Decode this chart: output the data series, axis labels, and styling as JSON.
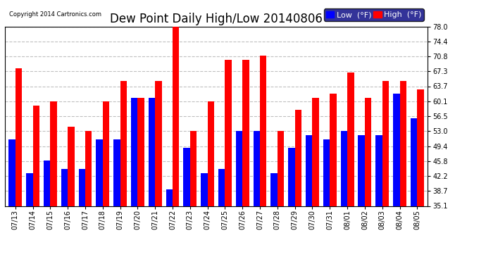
{
  "title": "Dew Point Daily High/Low 20140806",
  "copyright": "Copyright 2014 Cartronics.com",
  "dates": [
    "07/13",
    "07/14",
    "07/15",
    "07/16",
    "07/17",
    "07/18",
    "07/19",
    "07/20",
    "07/21",
    "07/22",
    "07/23",
    "07/24",
    "07/25",
    "07/26",
    "07/27",
    "07/28",
    "07/29",
    "07/30",
    "07/31",
    "08/01",
    "08/02",
    "08/03",
    "08/04",
    "08/05"
  ],
  "low": [
    51,
    43,
    46,
    44,
    44,
    51,
    51,
    61,
    61,
    39,
    49,
    43,
    44,
    53,
    53,
    43,
    49,
    52,
    51,
    53,
    52,
    52,
    62,
    56
  ],
  "high": [
    68,
    59,
    60,
    54,
    53,
    60,
    65,
    61,
    65,
    78,
    53,
    60,
    70,
    70,
    71,
    53,
    58,
    61,
    62,
    67,
    61,
    65,
    65,
    63
  ],
  "low_color": "#0000ff",
  "high_color": "#ff0000",
  "bg_color": "#ffffff",
  "grid_color": "#c0c0c0",
  "yticks": [
    35.1,
    38.7,
    42.2,
    45.8,
    49.4,
    53.0,
    56.5,
    60.1,
    63.7,
    67.3,
    70.8,
    74.4,
    78.0
  ],
  "ymin": 35.1,
  "ymax": 78.0,
  "bar_width": 0.38,
  "title_fontsize": 12,
  "tick_fontsize": 7,
  "legend_fontsize": 8
}
